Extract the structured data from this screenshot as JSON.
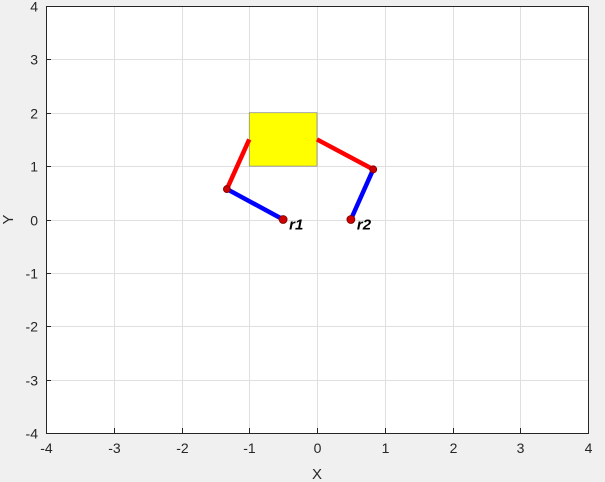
{
  "chart_data": {
    "type": "scatter",
    "xlabel": "X",
    "ylabel": "Y",
    "xlim": [
      -4,
      4
    ],
    "ylim": [
      -4,
      4
    ],
    "xticks": [
      -4,
      -3,
      -2,
      -1,
      0,
      1,
      2,
      3,
      4
    ],
    "yticks": [
      -4,
      -3,
      -2,
      -1,
      0,
      1,
      2,
      3,
      4
    ],
    "xtick_labels": [
      "-4",
      "-3",
      "-2",
      "-1",
      "0",
      "1",
      "2",
      "3",
      "4"
    ],
    "ytick_labels": [
      "-4",
      "-3",
      "-2",
      "-1",
      "0",
      "1",
      "2",
      "3",
      "4"
    ],
    "grid": true,
    "object": {
      "x": [
        -1,
        0
      ],
      "y": [
        1,
        2
      ],
      "color": "#ffff00",
      "edge_color": "#808080"
    },
    "robots": [
      {
        "label": "r1",
        "base": [
          -0.5,
          0
        ],
        "elbow": [
          -1.33,
          0.57
        ],
        "end": [
          -1,
          1.5
        ],
        "link1_color": "#0000ff",
        "link2_color": "#ff0000",
        "joint_color": "#cc0000"
      },
      {
        "label": "r2",
        "base": [
          0.5,
          0
        ],
        "elbow": [
          0.83,
          0.94
        ],
        "end": [
          0,
          1.5
        ],
        "link1_color": "#0000ff",
        "link2_color": "#ff0000",
        "joint_color": "#cc0000"
      }
    ]
  }
}
